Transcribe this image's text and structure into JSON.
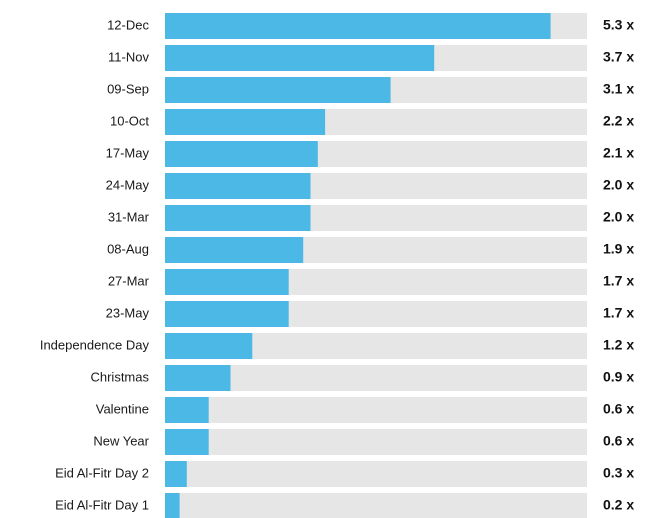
{
  "chart_data": {
    "type": "bar",
    "orientation": "horizontal",
    "title": "",
    "xlabel": "",
    "ylabel": "",
    "categories": [
      "12-Dec",
      "11-Nov",
      "09-Sep",
      "10-Oct",
      "17-May",
      "24-May",
      "31-Mar",
      "08-Aug",
      "27-Mar",
      "23-May",
      "Independence Day",
      "Christmas",
      "Valentine",
      "New Year",
      "Eid Al-Fitr Day 2",
      "Eid Al-Fitr Day 1"
    ],
    "values": [
      5.3,
      3.7,
      3.1,
      2.2,
      2.1,
      2.0,
      2.0,
      1.9,
      1.7,
      1.7,
      1.2,
      0.9,
      0.6,
      0.6,
      0.3,
      0.2
    ],
    "value_labels": [
      "5.3 x",
      "3.7 x",
      "3.1 x",
      "2.2 x",
      "2.1 x",
      "2.0 x",
      "2.0 x",
      "1.9 x",
      "1.7 x",
      "1.7 x",
      "1.2 x",
      "0.9 x",
      "0.6 x",
      "0.6 x",
      "0.3 x",
      "0.2 x"
    ],
    "xlim": [
      0,
      5.8
    ],
    "grid": false,
    "legend": "none",
    "colors": {
      "bar": "#4cb8e6",
      "track": "#e6e6e6"
    }
  }
}
